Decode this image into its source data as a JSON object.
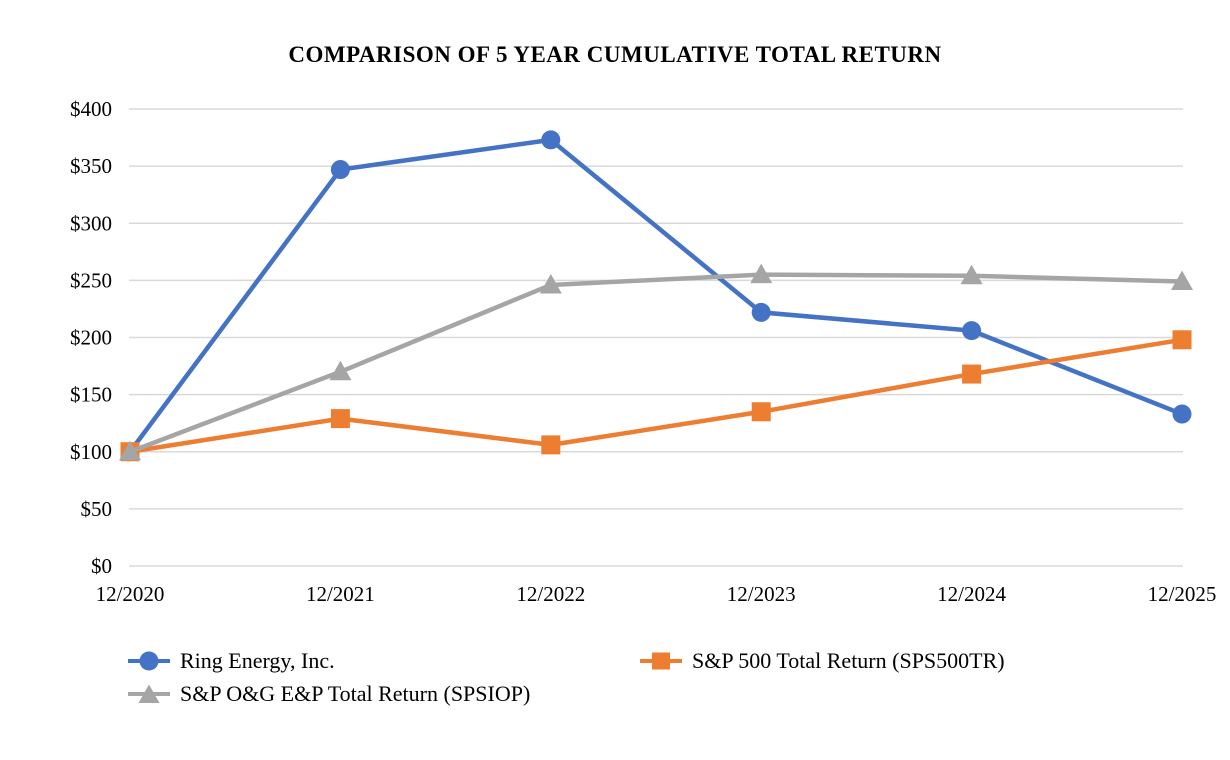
{
  "chart_data": {
    "type": "line",
    "title": "COMPARISON OF 5 YEAR CUMULATIVE TOTAL RETURN",
    "categories": [
      "12/2020",
      "12/2021",
      "12/2022",
      "12/2023",
      "12/2024",
      "12/2025"
    ],
    "series": [
      {
        "name": "Ring Energy, Inc.",
        "marker": "circle",
        "color": "#4472C4",
        "values": [
          100,
          347,
          373,
          222,
          206,
          133
        ]
      },
      {
        "name": "S&P 500 Total Return (SPS500TR)",
        "marker": "square",
        "color": "#ED7D31",
        "values": [
          100,
          129,
          106,
          135,
          168,
          198
        ]
      },
      {
        "name": "S&P O&G E&P Total Return (SPSIOP)",
        "marker": "triangle",
        "color": "#A5A5A5",
        "values": [
          100,
          170,
          246,
          255,
          254,
          249
        ]
      }
    ],
    "xlabel": "",
    "ylabel": "",
    "ylim": [
      0,
      400
    ],
    "ytick_step": 50,
    "ytick_prefix": "$",
    "grid": "horizontal",
    "gridline_color": "#D9D9D9",
    "text_color": "#000000",
    "legend_position": "bottom"
  },
  "legend": {
    "items": [
      {
        "label": "Ring Energy, Inc.",
        "marker": "circle",
        "color": "#4472C4"
      },
      {
        "label": "S&P 500 Total Return (SPS500TR)",
        "marker": "square",
        "color": "#ED7D31"
      },
      {
        "label": "S&P O&G E&P Total Return (SPSIOP)",
        "marker": "triangle",
        "color": "#A5A5A5"
      }
    ]
  }
}
